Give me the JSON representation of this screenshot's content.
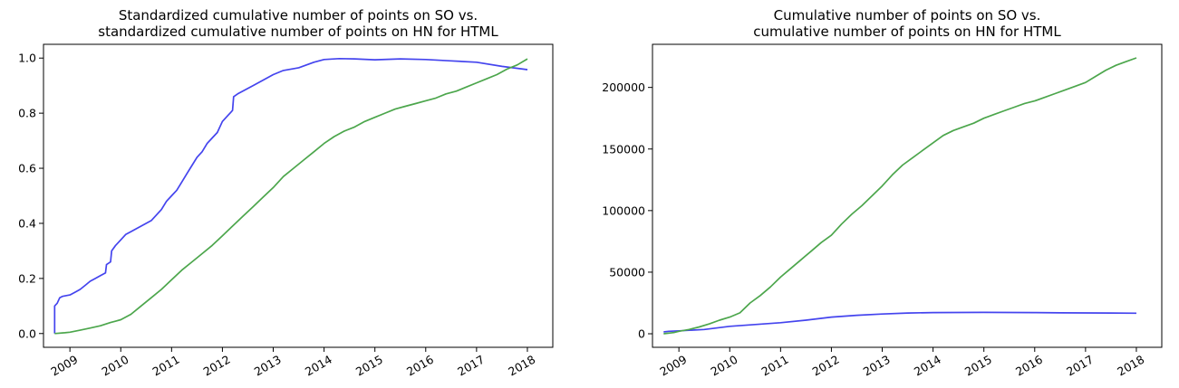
{
  "chart_data": [
    {
      "type": "line",
      "title": [
        "Standardized cumulative number of points on SO vs.",
        "standardized cumulative number of points on HN for HTML"
      ],
      "xlabel": "",
      "ylabel": "",
      "xlim": [
        2008.48,
        2018.5
      ],
      "ylim": [
        -0.05,
        1.05
      ],
      "x_ticks": [
        2009,
        2010,
        2011,
        2012,
        2013,
        2014,
        2015,
        2016,
        2017,
        2018
      ],
      "x_tick_labels": [
        "2009",
        "2010",
        "2011",
        "2012",
        "2013",
        "2014",
        "2015",
        "2016",
        "2017",
        "2018"
      ],
      "y_ticks": [
        0.0,
        0.2,
        0.4,
        0.6,
        0.8,
        1.0
      ],
      "y_tick_labels": [
        "0.0",
        "0.2",
        "0.4",
        "0.6",
        "0.8",
        "1.0"
      ],
      "grid": false,
      "series": [
        {
          "color": "#4444ee",
          "x": [
            2008.7,
            2008.7,
            2008.75,
            2008.8,
            2008.85,
            2009.0,
            2009.1,
            2009.2,
            2009.3,
            2009.4,
            2009.5,
            2009.6,
            2009.7,
            2009.72,
            2009.8,
            2009.82,
            2009.9,
            2010.0,
            2010.1,
            2010.2,
            2010.4,
            2010.6,
            2010.7,
            2010.8,
            2010.9,
            2011.0,
            2011.1,
            2011.2,
            2011.3,
            2011.4,
            2011.5,
            2011.6,
            2011.7,
            2011.8,
            2011.9,
            2012.0,
            2012.1,
            2012.2,
            2012.22,
            2012.3,
            2012.4,
            2012.5,
            2012.6,
            2012.8,
            2013.0,
            2013.2,
            2013.5,
            2013.8,
            2014.0,
            2014.3,
            2014.6,
            2015.0,
            2015.5,
            2016.0,
            2016.5,
            2017.0,
            2017.5,
            2018.0
          ],
          "y": [
            0.0,
            0.1,
            0.11,
            0.13,
            0.135,
            0.14,
            0.15,
            0.16,
            0.175,
            0.19,
            0.2,
            0.21,
            0.22,
            0.25,
            0.26,
            0.3,
            0.32,
            0.34,
            0.36,
            0.37,
            0.39,
            0.41,
            0.43,
            0.45,
            0.48,
            0.5,
            0.52,
            0.55,
            0.58,
            0.61,
            0.64,
            0.66,
            0.69,
            0.71,
            0.73,
            0.77,
            0.79,
            0.81,
            0.86,
            0.87,
            0.88,
            0.89,
            0.9,
            0.92,
            0.94,
            0.955,
            0.965,
            0.985,
            0.995,
            0.998,
            0.997,
            0.994,
            0.997,
            0.995,
            0.99,
            0.985,
            0.97,
            0.958
          ]
        },
        {
          "color": "#4ca64c",
          "x": [
            2008.7,
            2008.9,
            2009.0,
            2009.2,
            2009.4,
            2009.6,
            2009.8,
            2010.0,
            2010.2,
            2010.4,
            2010.6,
            2010.8,
            2011.0,
            2011.2,
            2011.4,
            2011.6,
            2011.8,
            2012.0,
            2012.2,
            2012.4,
            2012.6,
            2012.8,
            2013.0,
            2013.2,
            2013.4,
            2013.6,
            2013.8,
            2014.0,
            2014.2,
            2014.4,
            2014.6,
            2014.8,
            2015.0,
            2015.2,
            2015.4,
            2015.6,
            2015.8,
            2016.0,
            2016.2,
            2016.4,
            2016.6,
            2016.8,
            2017.0,
            2017.2,
            2017.4,
            2017.6,
            2017.8,
            2018.0
          ],
          "y": [
            0.0,
            0.003,
            0.005,
            0.012,
            0.02,
            0.028,
            0.04,
            0.05,
            0.07,
            0.1,
            0.13,
            0.16,
            0.195,
            0.23,
            0.26,
            0.29,
            0.32,
            0.355,
            0.39,
            0.425,
            0.46,
            0.495,
            0.53,
            0.57,
            0.6,
            0.63,
            0.66,
            0.69,
            0.715,
            0.735,
            0.75,
            0.77,
            0.785,
            0.8,
            0.815,
            0.825,
            0.835,
            0.845,
            0.855,
            0.87,
            0.88,
            0.895,
            0.91,
            0.925,
            0.94,
            0.96,
            0.975,
            0.997
          ]
        }
      ]
    },
    {
      "type": "line",
      "title": [
        "Cumulative number of points on SO vs.",
        "cumulative number of points on HN for HTML"
      ],
      "xlabel": "",
      "ylabel": "",
      "xlim": [
        2008.48,
        2018.5
      ],
      "ylim": [
        -11000,
        235000
      ],
      "x_ticks": [
        2009,
        2010,
        2011,
        2012,
        2013,
        2014,
        2015,
        2016,
        2017,
        2018
      ],
      "x_tick_labels": [
        "2009",
        "2010",
        "2011",
        "2012",
        "2013",
        "2014",
        "2015",
        "2016",
        "2017",
        "2018"
      ],
      "y_ticks": [
        0,
        50000,
        100000,
        150000,
        200000
      ],
      "y_tick_labels": [
        "0",
        "50000",
        "100000",
        "150000",
        "200000"
      ],
      "grid": false,
      "series": [
        {
          "color": "#4444ee",
          "x": [
            2008.7,
            2008.8,
            2009.0,
            2009.5,
            2010.0,
            2010.5,
            2011.0,
            2011.5,
            2012.0,
            2012.5,
            2013.0,
            2013.5,
            2014.0,
            2014.5,
            2015.0,
            2015.5,
            2016.0,
            2016.5,
            2017.0,
            2017.5,
            2018.0
          ],
          "y": [
            1500,
            2000,
            2400,
            3500,
            6000,
            7500,
            9000,
            11000,
            13500,
            15000,
            16000,
            16800,
            17200,
            17300,
            17350,
            17300,
            17200,
            17000,
            16900,
            16800,
            16700
          ]
        },
        {
          "color": "#4ca64c",
          "x": [
            2008.7,
            2008.9,
            2009.0,
            2009.2,
            2009.4,
            2009.6,
            2009.8,
            2010.0,
            2010.2,
            2010.4,
            2010.6,
            2010.8,
            2011.0,
            2011.2,
            2011.4,
            2011.6,
            2011.8,
            2012.0,
            2012.2,
            2012.4,
            2012.6,
            2012.8,
            2013.0,
            2013.2,
            2013.4,
            2013.6,
            2013.8,
            2014.0,
            2014.2,
            2014.4,
            2014.6,
            2014.8,
            2015.0,
            2015.2,
            2015.4,
            2015.6,
            2015.8,
            2016.0,
            2016.2,
            2016.4,
            2016.6,
            2016.8,
            2017.0,
            2017.2,
            2017.4,
            2017.6,
            2017.8,
            2018.0
          ],
          "y": [
            0,
            1000,
            2000,
            3500,
            5500,
            8000,
            11000,
            13500,
            17000,
            25000,
            31000,
            38000,
            46000,
            53000,
            60000,
            67000,
            74000,
            80000,
            89000,
            97000,
            104000,
            112000,
            120000,
            129000,
            137000,
            143000,
            149000,
            155000,
            161000,
            165000,
            168000,
            171000,
            175000,
            178000,
            181000,
            184000,
            187000,
            189000,
            192000,
            195000,
            198000,
            201000,
            204000,
            209000,
            214000,
            218000,
            221000,
            224000
          ]
        }
      ]
    }
  ]
}
